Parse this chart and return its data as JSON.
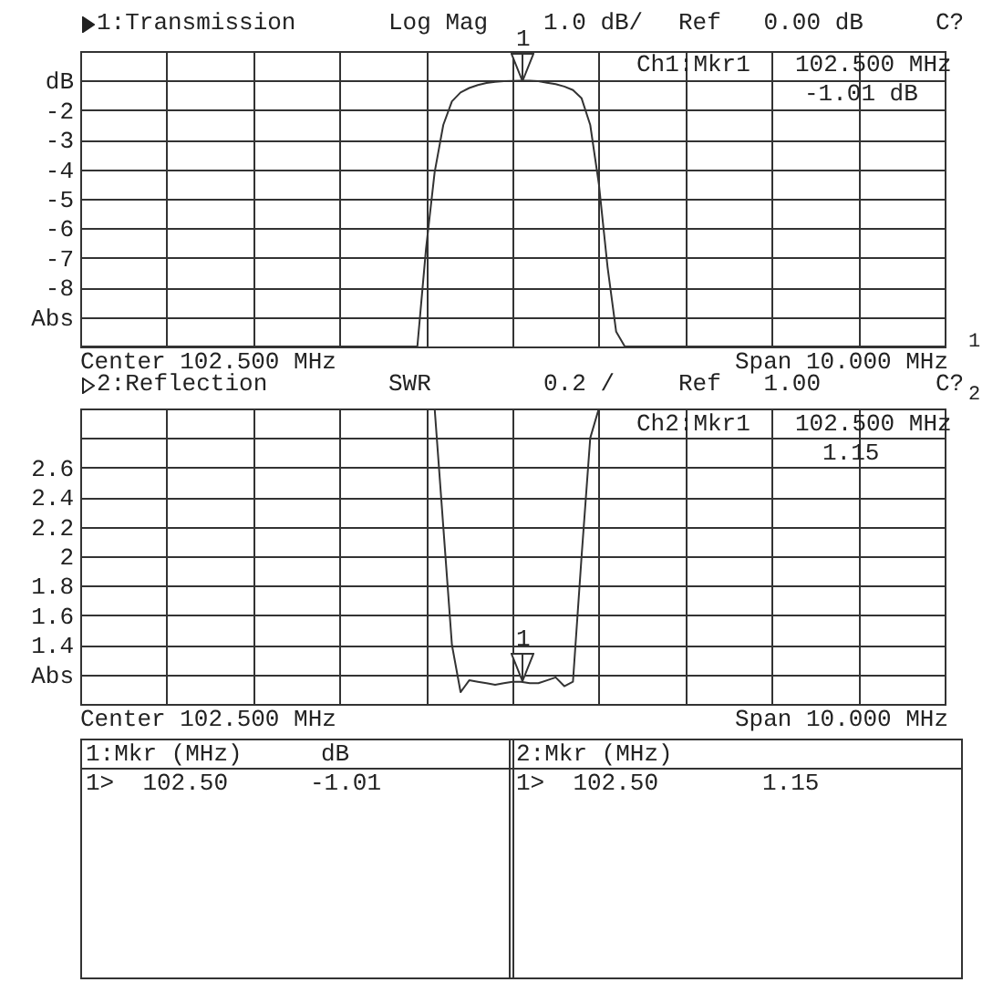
{
  "chart_data": [
    {
      "type": "line",
      "title": "1:Transmission",
      "annotations": [
        "Log Mag",
        "1.0 dB/",
        "Ref   0.00 dB",
        "C?",
        "Ch1:Mkr1",
        "102.500 MHz",
        "-1.01 dB",
        "Center 102.500 MHz",
        "Span 10.000 MHz",
        "1:Mkr (MHz)",
        "dB",
        "1>  102.50",
        "-1.01",
        "1",
        "1"
      ],
      "categories": [
        null,
        null,
        null,
        null,
        null,
        null,
        null,
        null,
        null,
        null,
        null,
        null,
        null,
        null,
        null,
        null,
        null,
        null,
        null,
        null,
        null,
        null,
        null,
        null,
        null,
        null,
        null,
        null,
        null,
        null,
        null,
        null,
        null,
        null,
        null,
        null,
        null,
        null,
        null,
        null,
        null,
        null,
        null,
        null,
        null,
        null,
        null,
        null,
        null,
        null,
        null,
        null,
        null,
        null,
        null,
        null,
        null,
        null,
        null,
        null,
        null,
        null,
        null,
        null,
        null,
        null,
        null,
        null,
        null,
        null,
        null,
        null,
        null,
        null,
        null,
        null,
        null,
        null,
        null,
        null,
        null,
        null,
        null,
        null,
        null,
        null,
        null,
        null,
        null,
        null,
        null,
        null,
        null,
        null,
        null,
        null,
        null,
        null,
        null,
        null,
        null
      ],
      "ylim": [
        -10,
        0
      ],
      "yticks": [
        {
          "value": 0,
          "label": null
        },
        {
          "value": -1,
          "label": "dB"
        },
        -2,
        -3,
        -4,
        -5,
        -6,
        -7,
        -8,
        {
          "value": -9,
          "label": "Abs"
        },
        {
          "value": -10,
          "label": null
        }
      ],
      "tick_labels": "y",
      "grid": true,
      "series": [
        {
          "color": "#333333",
          "values": [
            -10,
            -10,
            -10,
            -10,
            -10,
            -10,
            -10,
            -10,
            -10,
            -10,
            -10,
            -10,
            -10,
            -10,
            -10,
            -10,
            -10,
            -10,
            -10,
            -10,
            -10,
            -10,
            -10,
            -10,
            -10,
            -10,
            -10,
            -10,
            -10,
            -10,
            -10,
            -10,
            -10,
            -10,
            -10,
            -10,
            -10,
            -10,
            -10,
            -10,
            -6.7,
            -4.1,
            -2.5,
            -1.7,
            -1.4,
            -1.25,
            -1.15,
            -1.08,
            -1.04,
            -1.02,
            -1.01,
            -1.0,
            -1.0,
            -1.02,
            -1.07,
            -1.12,
            -1.2,
            -1.32,
            -1.6,
            -2.5,
            -4.5,
            -7.3,
            -9.5,
            -10,
            -10,
            -10,
            -10,
            -10,
            -10,
            -10,
            -10,
            -10,
            -10,
            -10,
            -10,
            -10,
            -10,
            -10,
            -10,
            -10,
            -10,
            -10,
            -10,
            -10,
            -10,
            -10,
            -10,
            -10,
            -10,
            -10,
            -10,
            -10,
            -10,
            -10,
            -10,
            -10,
            -10,
            -10,
            -10,
            -10,
            -10
          ]
        }
      ]
    },
    {
      "type": "line",
      "title": "2:Reflection",
      "annotations": [
        "SWR",
        "0.2 /",
        "Ref   1.00",
        "C?",
        "Ch2:Mkr1",
        "102.500 MHz",
        "1.15",
        "Center 102.500 MHz",
        "Span 10.000 MHz",
        "2:Mkr (MHz)",
        "1>  102.50",
        "1.15",
        "1",
        "2"
      ],
      "categories": [
        null,
        null,
        null,
        null,
        null,
        null,
        null,
        null,
        null,
        null,
        null,
        null,
        null,
        null,
        null,
        null,
        null,
        null,
        null,
        null,
        null,
        null,
        null,
        null,
        null,
        null,
        null,
        null,
        null,
        null,
        null,
        null,
        null,
        null,
        null,
        null,
        null,
        null,
        null,
        null,
        null,
        null,
        null,
        null,
        null,
        null,
        null,
        null,
        null,
        null,
        null,
        null,
        null,
        null,
        null,
        null,
        null,
        null,
        null,
        null,
        null,
        null,
        null,
        null,
        null,
        null,
        null,
        null,
        null,
        null,
        null,
        null,
        null,
        null,
        null,
        null,
        null,
        null,
        null,
        null,
        null,
        null,
        null,
        null,
        null,
        null,
        null,
        null,
        null,
        null,
        null,
        null,
        null,
        null,
        null,
        null,
        null,
        null,
        null,
        null,
        null
      ],
      "ylim": [
        1,
        3
      ],
      "yticks": [
        {
          "value": 3,
          "label": null
        },
        {
          "value": 2.8,
          "label": null
        },
        2.6,
        2.4,
        2.2,
        2,
        1.8,
        1.6,
        1.4,
        {
          "value": 1.2,
          "label": "Abs"
        },
        {
          "value": 1,
          "label": null
        }
      ],
      "tick_labels": "y",
      "grid": true,
      "series": [
        {
          "color": "#333333",
          "values": [
            3,
            3,
            3,
            3,
            3,
            3,
            3,
            3,
            3,
            3,
            3,
            3,
            3,
            3,
            3,
            3,
            3,
            3,
            3,
            3,
            3,
            3,
            3,
            3,
            3,
            3,
            3,
            3,
            3,
            3,
            3,
            3,
            3,
            3,
            3,
            3,
            3,
            3,
            3,
            3,
            3,
            3,
            2.2,
            1.4,
            1.08,
            1.16,
            1.15,
            1.14,
            1.13,
            1.14,
            1.15,
            1.15,
            1.14,
            1.14,
            1.16,
            1.18,
            1.12,
            1.15,
            2.0,
            2.8,
            3,
            3,
            3,
            3,
            3,
            3,
            3,
            3,
            3,
            3,
            3,
            3,
            3,
            3,
            3,
            3,
            3,
            3,
            3,
            3,
            3,
            3,
            3,
            3,
            3,
            3,
            3,
            3,
            3,
            3,
            3,
            3,
            3,
            3,
            3,
            3,
            3,
            3,
            3,
            3,
            3
          ]
        }
      ]
    }
  ]
}
